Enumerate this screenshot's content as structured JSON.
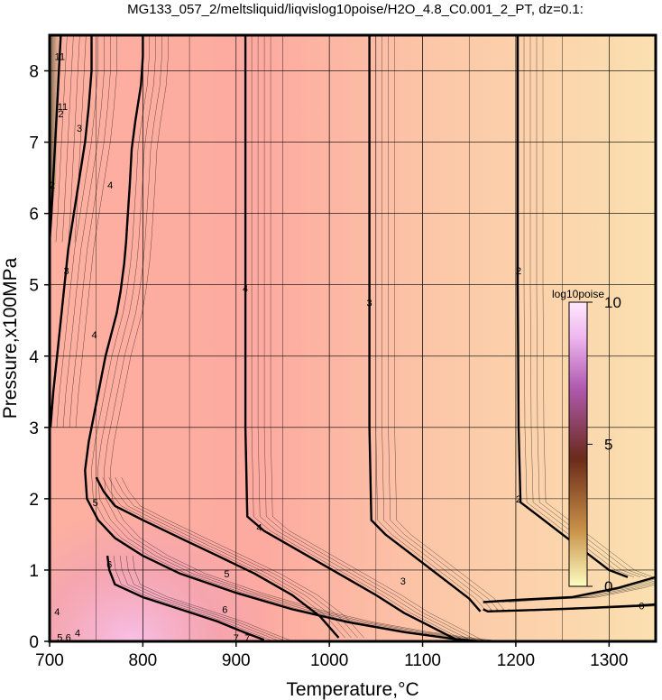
{
  "chart_data": {
    "type": "heatmap",
    "title": "MG133_057_2/meltsliquid/liqvislog10poise/H2O_4.8_C0.001_2_PT, dz=0.1:",
    "xlabel": "Temperature,°C",
    "ylabel": "Pressure,x100MPa",
    "xlim": [
      700,
      1350
    ],
    "ylim": [
      0,
      8.5
    ],
    "xticks": [
      700,
      800,
      900,
      1000,
      1100,
      1200,
      1300
    ],
    "yticks": [
      0,
      1,
      2,
      3,
      4,
      5,
      6,
      7,
      8
    ],
    "grid": true,
    "colorbar": {
      "title": "log10poise",
      "range": [
        0,
        10
      ],
      "ticks": [
        0,
        5,
        10
      ],
      "colors": [
        "#fdfdc0",
        "#c89048",
        "#6a2a1a",
        "#b05ab0",
        "#f0b8f0",
        "#fde8fd"
      ]
    },
    "background_colors": [
      "#fbe0b0",
      "#fdb0a0",
      "#f8b8c8",
      "#e890b8"
    ],
    "contours": [
      {
        "level": 4,
        "x": [
          800,
          800,
          798,
          792,
          788,
          786,
          784,
          782,
          780,
          776,
          772,
          766,
          760,
          754,
          748,
          742,
          738,
          740,
          752,
          770,
          800,
          840,
          900,
          960,
          1020,
          1080,
          1130,
          1160
        ],
        "y": [
          8.5,
          8.2,
          7.8,
          7.3,
          6.9,
          6.4,
          6.0,
          5.6,
          5.3,
          4.9,
          4.6,
          4.3,
          4.0,
          3.6,
          3.2,
          2.8,
          2.4,
          2.0,
          1.7,
          1.45,
          1.2,
          0.95,
          0.68,
          0.45,
          0.27,
          0.13,
          0.04,
          0.0
        ]
      },
      {
        "level": 3,
        "x": [
          745,
          745,
          742,
          738,
          732,
          726,
          720,
          716,
          712,
          708,
          704,
          701
        ],
        "y": [
          8.5,
          8.0,
          7.5,
          7.0,
          6.5,
          6.0,
          5.5,
          5.0,
          4.5,
          4.0,
          3.5,
          3.0
        ]
      },
      {
        "level": 2,
        "x": [
          712,
          710,
          708,
          706,
          704,
          702,
          700
        ],
        "y": [
          8.5,
          8.0,
          7.5,
          7.0,
          6.5,
          6.0,
          5.6
        ]
      },
      {
        "level": 4,
        "x": [
          910,
          910,
          910,
          910,
          912,
          930,
          970,
          1010,
          1050,
          1080,
          1110,
          1140
        ],
        "y": [
          8.5,
          7.0,
          5.0,
          3.0,
          1.75,
          1.55,
          1.25,
          0.95,
          0.65,
          0.4,
          0.2,
          0.0
        ]
      },
      {
        "level": 3,
        "x": [
          1043,
          1043,
          1043,
          1043,
          1045,
          1060,
          1090,
          1120,
          1150,
          1162
        ],
        "y": [
          8.5,
          7.0,
          5.0,
          3.0,
          1.7,
          1.5,
          1.2,
          0.9,
          0.6,
          0.42
        ]
      },
      {
        "level": 2,
        "x": [
          1202,
          1202,
          1202,
          1203,
          1205,
          1225,
          1250,
          1275,
          1300,
          1320
        ],
        "y": [
          8.5,
          7.0,
          5.0,
          3.0,
          1.95,
          1.75,
          1.5,
          1.25,
          1.0,
          0.9
        ]
      },
      {
        "level": 5,
        "x": [
          750,
          758,
          770,
          800,
          840,
          880,
          920,
          960,
          990,
          1010
        ],
        "y": [
          2.3,
          2.1,
          1.9,
          1.7,
          1.45,
          1.2,
          0.95,
          0.65,
          0.35,
          0.05
        ]
      },
      {
        "level": 6,
        "x": [
          762,
          764,
          770,
          800,
          840,
          880,
          910,
          930
        ],
        "y": [
          1.2,
          1.0,
          0.8,
          0.62,
          0.45,
          0.28,
          0.12,
          0.02
        ]
      },
      {
        "level": 3,
        "x": [
          1165,
          1170,
          1220,
          1280,
          1330,
          1350
        ],
        "y": [
          0.45,
          0.42,
          0.44,
          0.47,
          0.5,
          0.52
        ]
      },
      {
        "level": 2,
        "x": [
          1165,
          1200,
          1260,
          1310,
          1350
        ],
        "y": [
          0.55,
          0.58,
          0.62,
          0.75,
          0.9
        ]
      }
    ],
    "contour_labels": [
      {
        "text": "2",
        "x": 1203,
        "y": 5.2
      },
      {
        "text": "2",
        "x": 1203,
        "y": 2.0
      },
      {
        "text": "3",
        "x": 1043,
        "y": 4.75
      },
      {
        "text": "3",
        "x": 1079,
        "y": 0.85
      },
      {
        "text": "4",
        "x": 910,
        "y": 4.95
      },
      {
        "text": "4",
        "x": 925,
        "y": 1.6
      },
      {
        "text": "4",
        "x": 765,
        "y": 6.4
      },
      {
        "text": "4",
        "x": 748,
        "y": 4.3
      },
      {
        "text": "3",
        "x": 732,
        "y": 7.2
      },
      {
        "text": "3",
        "x": 718,
        "y": 5.2
      },
      {
        "text": "2",
        "x": 703,
        "y": 6.4
      },
      {
        "text": "2",
        "x": 712,
        "y": 7.4
      },
      {
        "text": "11",
        "x": 714,
        "y": 7.5
      },
      {
        "text": "11",
        "x": 711,
        "y": 8.2
      },
      {
        "text": "5",
        "x": 749,
        "y": 1.95
      },
      {
        "text": "5",
        "x": 890,
        "y": 0.95
      },
      {
        "text": "6",
        "x": 764,
        "y": 1.08
      },
      {
        "text": "6",
        "x": 888,
        "y": 0.45
      },
      {
        "text": "7",
        "x": 900,
        "y": 0.05
      },
      {
        "text": "7",
        "x": 912,
        "y": 0.05
      },
      {
        "text": "4",
        "x": 708,
        "y": 0.42
      },
      {
        "text": "5",
        "x": 711,
        "y": 0.06
      },
      {
        "text": "6",
        "x": 720,
        "y": 0.06
      },
      {
        "text": "4",
        "x": 730,
        "y": 0.12
      },
      {
        "text": "0",
        "x": 1335,
        "y": 0.5
      }
    ]
  }
}
